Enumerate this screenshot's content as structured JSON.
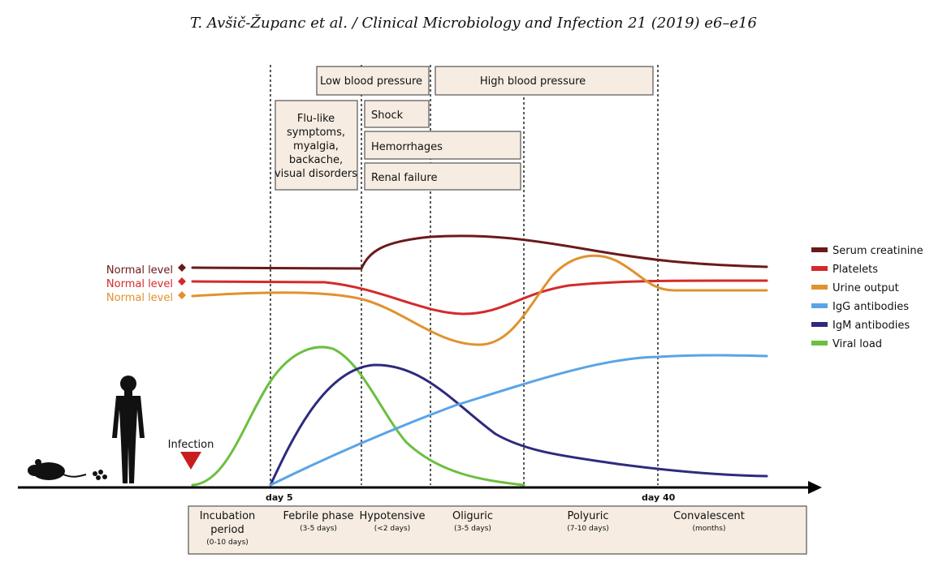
{
  "header": {
    "citation": "T. Avšič-Županc et al. / Clinical Microbiology and Infection 21 (2019) e6–e16"
  },
  "symptom_boxes": {
    "low_bp": "Low blood pressure",
    "high_bp": "High blood pressure",
    "flu": [
      "Flu-like",
      "symptoms,",
      "myalgia,",
      "backache,",
      "visual disorders"
    ],
    "shock": "Shock",
    "hemorrhages": "Hemorrhages",
    "renal_failure": "Renal failure"
  },
  "normal_levels": [
    "Normal level",
    "Normal level",
    "Normal level"
  ],
  "legend": [
    {
      "label": "Serum creatinine",
      "color": "#6b1a1a"
    },
    {
      "label": "Platelets",
      "color": "#d42a2a"
    },
    {
      "label": "Urine output",
      "color": "#e0922e"
    },
    {
      "label": "IgG antibodies",
      "color": "#5aa4e6"
    },
    {
      "label": "IgM antibodies",
      "color": "#2e2a7e"
    },
    {
      "label": "Viral load",
      "color": "#6cbf3f"
    }
  ],
  "infection_label": "Infection",
  "axis_ticks": {
    "day5": "day 5",
    "day40": "day 40"
  },
  "phases": [
    {
      "name": "Incubation\nperiod",
      "duration": "(0-10 days)"
    },
    {
      "name": "Febrile phase",
      "duration": "(3-5 days)"
    },
    {
      "name": "Hypotensive",
      "duration": "(<2 days)"
    },
    {
      "name": "Oliguric",
      "duration": "(3-5 days)"
    },
    {
      "name": "Polyuric",
      "duration": "(7-10 days)"
    },
    {
      "name": "Convalescent",
      "duration": "(months)"
    }
  ],
  "colors": {
    "box_fill": "#f6ece1",
    "box_stroke": "#555555",
    "axis": "#000000",
    "normal_marker": "#6b1a1a"
  }
}
